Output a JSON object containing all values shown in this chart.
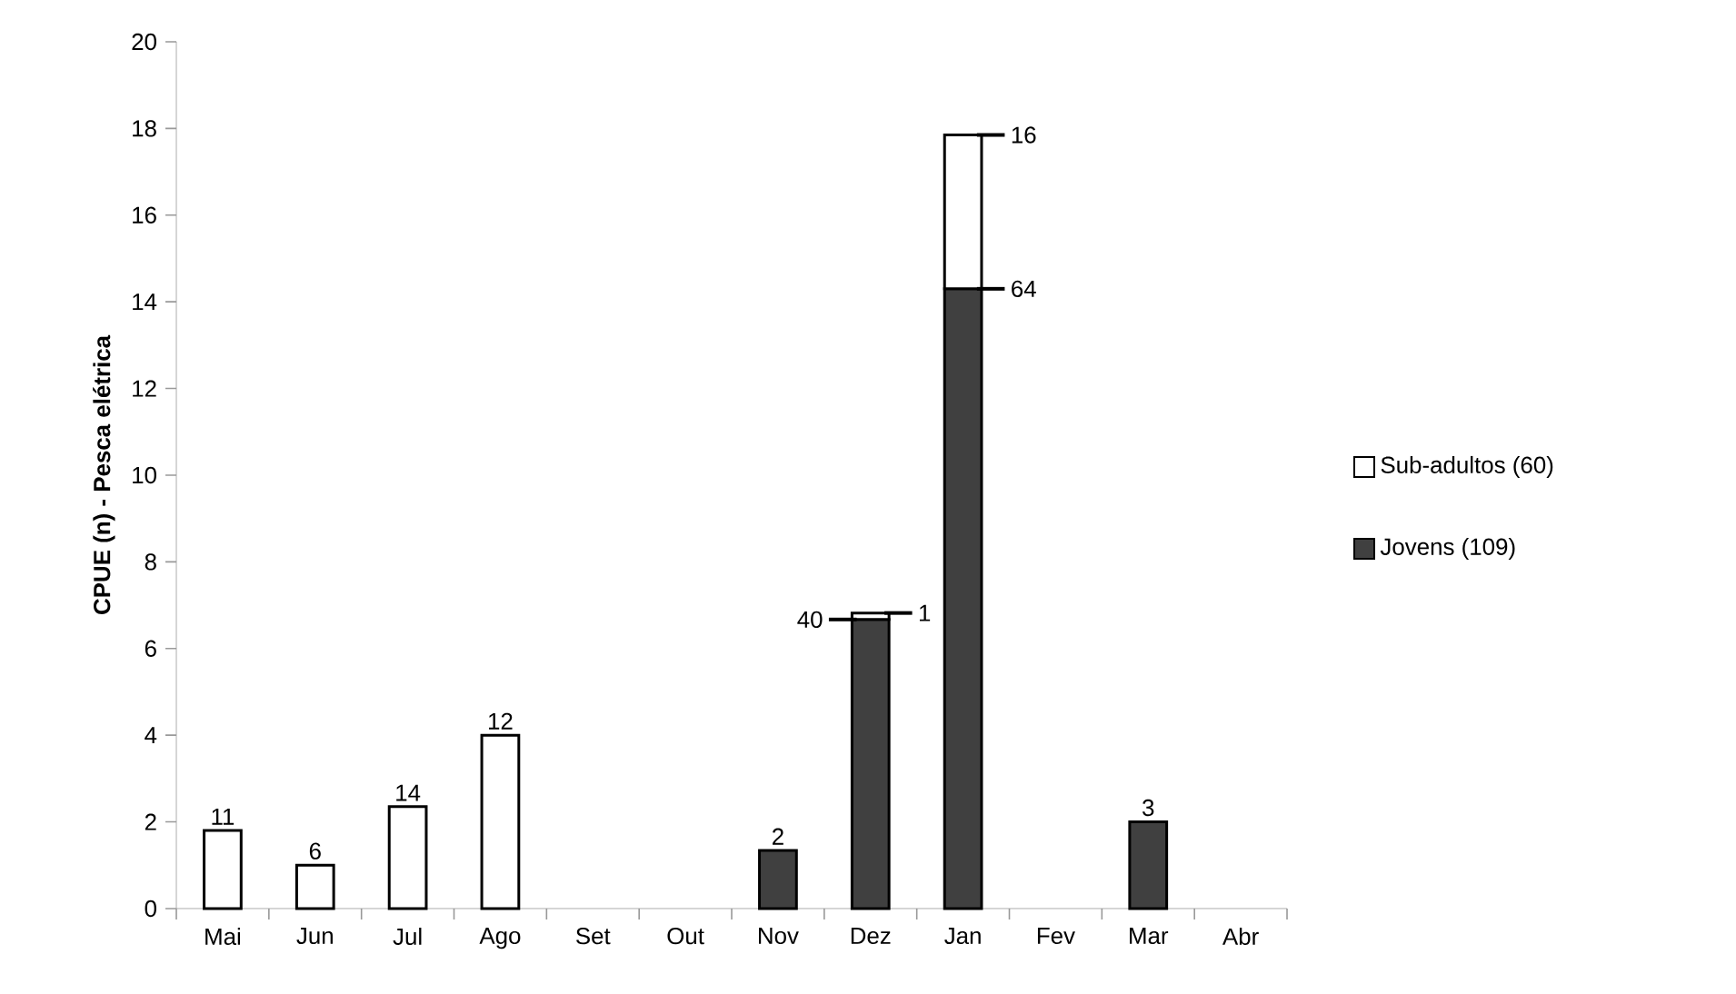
{
  "chart_data": {
    "type": "bar",
    "stacked": true,
    "ylabel": "CPUE (n) - Pesca elétrica",
    "categories": [
      "Mai",
      "Jun",
      "Jul",
      "Ago",
      "Set",
      "Out",
      "Nov",
      "Dez",
      "Jan",
      "Fev",
      "Mar",
      "Abr"
    ],
    "series": [
      {
        "name": "Jovens (109)",
        "color": "#404040",
        "values": [
          null,
          null,
          null,
          null,
          null,
          null,
          1.34,
          6.67,
          14.3,
          null,
          2.0,
          null
        ]
      },
      {
        "name": "Sub-adultos (60)",
        "color": "#ffffff",
        "values": [
          1.8,
          1.0,
          2.35,
          4.0,
          null,
          null,
          null,
          0.15,
          3.55,
          null,
          null,
          null
        ]
      }
    ],
    "ylim": [
      0,
      20
    ],
    "yticks": [
      0,
      2,
      4,
      6,
      8,
      10,
      12,
      14,
      16,
      18,
      20
    ],
    "legend": "right",
    "grid": false,
    "annotations": [
      {
        "text": "11",
        "x": "Mai",
        "y": 1.8
      },
      {
        "text": "6",
        "x": "Jun",
        "y": 1.0
      },
      {
        "text": "14",
        "x": "Jul",
        "y": 2.35
      },
      {
        "text": "12",
        "x": "Ago",
        "y": 4.0
      },
      {
        "text": "2",
        "x": "Nov",
        "y": 1.34
      },
      {
        "text": "1",
        "x": "Dez",
        "y": 6.82
      },
      {
        "text": "40",
        "x": "Dez",
        "y": 6.67
      },
      {
        "text": "16",
        "x": "Jan",
        "y": 17.85
      },
      {
        "text": "64",
        "x": "Jan",
        "y": 14.3
      },
      {
        "text": "3",
        "x": "Mar",
        "y": 2.0
      }
    ]
  }
}
